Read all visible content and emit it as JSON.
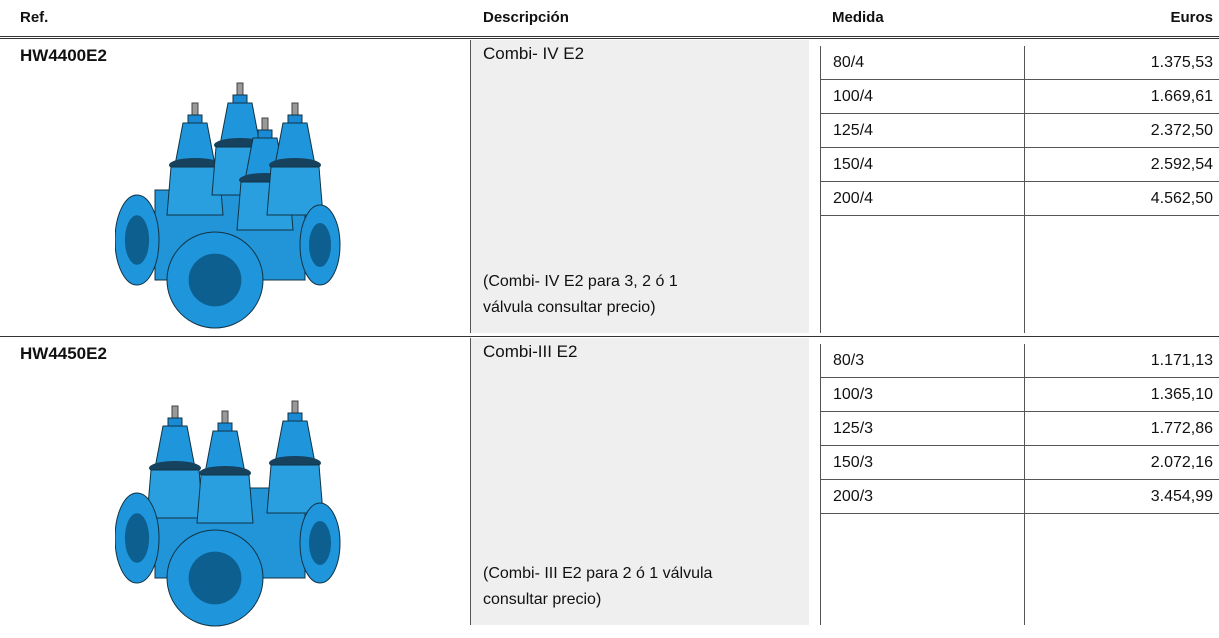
{
  "header": {
    "ref": "Ref.",
    "descripcion": "Descripción",
    "medida": "Medida",
    "euros": "Euros"
  },
  "products": [
    {
      "ref": "HW4400E2",
      "description": "Combi- IV E2",
      "note_lines": [
        "(Combi- IV E2 para 3, 2 ó 1",
        "válvula consultar precio)"
      ],
      "sizes": [
        [
          "80/4",
          "1.375,53"
        ],
        [
          "100/4",
          "1.669,61"
        ],
        [
          "125/4",
          "2.372,50"
        ],
        [
          "150/4",
          "2.592,54"
        ],
        [
          "200/4",
          "4.562,50"
        ]
      ]
    },
    {
      "ref": "HW4450E2",
      "description": "Combi-III E2",
      "note_lines": [
        "(Combi- III E2 para 2 ó 1 válvula",
        "consultar precio)"
      ],
      "sizes": [
        [
          "80/3",
          "1.171,13"
        ],
        [
          "100/3",
          "1.365,10"
        ],
        [
          "125/3",
          "1.772,86"
        ],
        [
          "150/3",
          "2.072,16"
        ],
        [
          "200/3",
          "3.454,99"
        ]
      ]
    }
  ]
}
